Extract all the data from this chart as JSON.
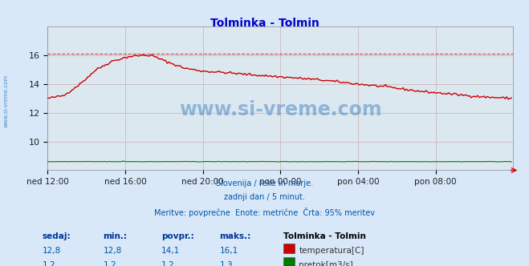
{
  "title": "Tolminka - Tolmin",
  "title_color": "#0000cc",
  "bg_color": "#d8e8f8",
  "plot_bg_color": "#dce8f0",
  "grid_color": "#c8a0a0",
  "x_tick_labels": [
    "ned 12:00",
    "ned 16:00",
    "ned 20:00",
    "pon 00:00",
    "pon 04:00",
    "pon 08:00"
  ],
  "x_tick_positions": [
    0,
    48,
    96,
    144,
    192,
    240
  ],
  "total_points": 288,
  "ylim": [
    8,
    18
  ],
  "yticks": [
    10,
    12,
    14,
    16
  ],
  "max_line_temp": 16.1,
  "temp_color": "#cc0000",
  "flow_color": "#007700",
  "watermark_color": "#3377bb",
  "subtitle_lines": [
    "Slovenija / reke in morje.",
    "zadnji dan / 5 minut.",
    "Meritve: povprečne  Enote: metrične  Črta: 95% meritev"
  ],
  "legend_title": "Tolminka - Tolmin",
  "legend_entries": [
    {
      "label": "temperatura[C]",
      "color": "#cc0000"
    },
    {
      "label": "pretok[m3/s]",
      "color": "#007700"
    }
  ],
  "table_headers": [
    "sedaj:",
    "min.:",
    "povpr.:",
    "maks.:"
  ],
  "table_data": [
    [
      "12,8",
      "12,8",
      "14,1",
      "16,1"
    ],
    [
      "1,2",
      "1,2",
      "1,2",
      "1,3"
    ]
  ],
  "font_color_blue": "#0055aa",
  "font_color_header": "#003399"
}
